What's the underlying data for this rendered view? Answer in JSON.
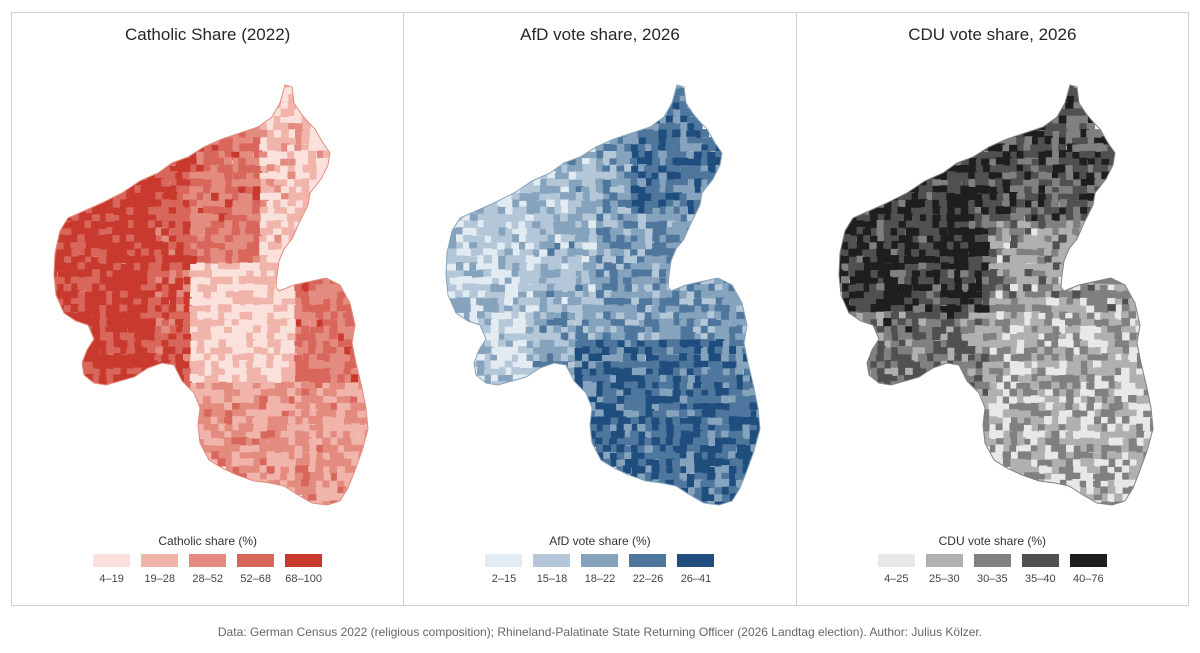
{
  "panels": [
    {
      "title": "Catholic Share (2022)",
      "legend_title": "Catholic share (%)",
      "classes": [
        {
          "label": "4–19",
          "color": "#fbe1dc"
        },
        {
          "label": "19–28",
          "color": "#f1b4aa"
        },
        {
          "label": "28–52",
          "color": "#e48b7f"
        },
        {
          "label": "52–68",
          "color": "#d8665a"
        },
        {
          "label": "68–100",
          "color": "#c8392e"
        }
      ]
    },
    {
      "title": "AfD vote share, 2026",
      "legend_title": "AfD vote share (%)",
      "classes": [
        {
          "label": "2–15",
          "color": "#e3ebf2"
        },
        {
          "label": "15–18",
          "color": "#b4c7d8"
        },
        {
          "label": "18–22",
          "color": "#85a3bd"
        },
        {
          "label": "22–26",
          "color": "#4f779d"
        },
        {
          "label": "26–41",
          "color": "#1f4e7e"
        }
      ]
    },
    {
      "title": "CDU vote share, 2026",
      "legend_title": "CDU vote share (%)",
      "classes": [
        {
          "label": "4–25",
          "color": "#e8e8e8"
        },
        {
          "label": "25–30",
          "color": "#b0b0b0"
        },
        {
          "label": "30–35",
          "color": "#808080"
        },
        {
          "label": "35–40",
          "color": "#505050"
        },
        {
          "label": "40–76",
          "color": "#1e1e1e"
        }
      ]
    }
  ],
  "caption": "Data: German Census 2022 (religious composition); Rhineland-Palatinate State Returning Officer (2026 Landtag election). Author: Julius Kölzer."
}
